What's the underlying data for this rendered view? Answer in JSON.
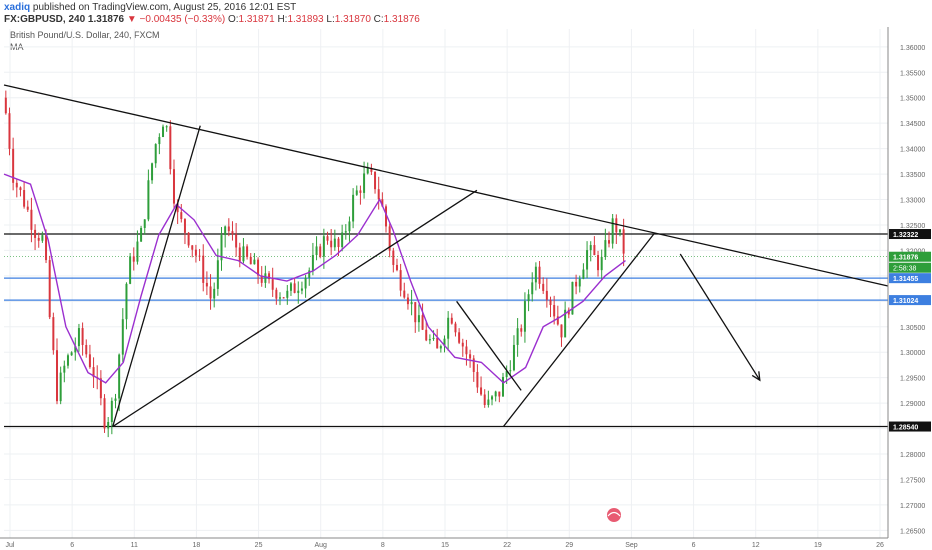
{
  "header": {
    "author": "xadiq",
    "published": "published on TradingView.com, August 25, 2016 12:01 EST",
    "symbol": "FX:GBPUSD, 240",
    "last": "1.31876",
    "change": "−0.00435 (−0.33%)",
    "o_label": "O:",
    "o": "1.31871",
    "h_label": "H:",
    "h": "1.31893",
    "l_label": "L:",
    "l": "1.31870",
    "c_label": "C:",
    "c": "1.31876"
  },
  "instrument": {
    "name": "British Pound/U.S. Dollar, 240, FXCM",
    "indicator": "MA"
  },
  "colors": {
    "up": "#2e9e3a",
    "down": "#d9363e",
    "ma": "#9b2fcf",
    "trendline": "#111111",
    "support_blue": "#3d7fe0",
    "grid": "#eef0f3"
  },
  "chart_data": {
    "type": "candlestick",
    "ylim": [
      1.2635,
      1.3635
    ],
    "yticks": [
      "1.36000",
      "1.35500",
      "1.35000",
      "1.34500",
      "1.34000",
      "1.33500",
      "1.33000",
      "1.32500",
      "1.32000",
      "1.31500",
      "1.31000",
      "1.30500",
      "1.30000",
      "1.29500",
      "1.29000",
      "1.28500",
      "1.28000",
      "1.27500",
      "1.27000",
      "1.26500"
    ],
    "xticks": [
      "Jul",
      "6",
      "11",
      "18",
      "25",
      "Aug",
      "8",
      "15",
      "22",
      "29",
      "Sep",
      "6",
      "12",
      "19",
      "26"
    ],
    "price_labels": [
      {
        "text": "1.32322",
        "value": 1.32322,
        "color": "#111111"
      },
      {
        "text": "1.31876",
        "value": 1.31876,
        "color": "#2e9e3a"
      },
      {
        "text": "1.31455",
        "value": 1.31455,
        "color": "#3d7fe0"
      },
      {
        "text": "1.31024",
        "value": 1.31024,
        "color": "#3d7fe0"
      },
      {
        "text": "1.28540",
        "value": 1.2854,
        "color": "#111111"
      }
    ],
    "countdown": "2:58:38",
    "horizontal_lines": [
      {
        "value": 1.32322,
        "color": "#111111"
      },
      {
        "value": 1.31455,
        "color": "#3d7fe0"
      },
      {
        "value": 1.31024,
        "color": "#3d7fe0"
      },
      {
        "value": 1.2854,
        "color": "#111111"
      }
    ],
    "price_path": [
      [
        0.0,
        1.35
      ],
      [
        0.011,
        1.334
      ],
      [
        0.022,
        1.33
      ],
      [
        0.035,
        1.324
      ],
      [
        0.045,
        1.322
      ],
      [
        0.052,
        1.306
      ],
      [
        0.06,
        1.292
      ],
      [
        0.07,
        1.298
      ],
      [
        0.085,
        1.303
      ],
      [
        0.1,
        1.297
      ],
      [
        0.115,
        1.286
      ],
      [
        0.125,
        1.291
      ],
      [
        0.14,
        1.316
      ],
      [
        0.155,
        1.323
      ],
      [
        0.17,
        1.34
      ],
      [
        0.182,
        1.347
      ],
      [
        0.195,
        1.327
      ],
      [
        0.208,
        1.323
      ],
      [
        0.22,
        1.318
      ],
      [
        0.235,
        1.31
      ],
      [
        0.25,
        1.325
      ],
      [
        0.265,
        1.32
      ],
      [
        0.285,
        1.316
      ],
      [
        0.3,
        1.313
      ],
      [
        0.32,
        1.311
      ],
      [
        0.345,
        1.316
      ],
      [
        0.365,
        1.323
      ],
      [
        0.38,
        1.32
      ],
      [
        0.395,
        1.33
      ],
      [
        0.41,
        1.335
      ],
      [
        0.42,
        1.333
      ],
      [
        0.43,
        1.327
      ],
      [
        0.44,
        1.317
      ],
      [
        0.455,
        1.312
      ],
      [
        0.47,
        1.305
      ],
      [
        0.49,
        1.3
      ],
      [
        0.505,
        1.308
      ],
      [
        0.52,
        1.301
      ],
      [
        0.53,
        1.297
      ],
      [
        0.545,
        1.289
      ],
      [
        0.56,
        1.292
      ],
      [
        0.572,
        1.298
      ],
      [
        0.585,
        1.305
      ],
      [
        0.6,
        1.317
      ],
      [
        0.615,
        1.312
      ],
      [
        0.63,
        1.304
      ],
      [
        0.645,
        1.313
      ],
      [
        0.66,
        1.32
      ],
      [
        0.675,
        1.317
      ],
      [
        0.69,
        1.326
      ],
      [
        0.703,
        1.319
      ]
    ],
    "ma_path": [
      [
        0.0,
        1.335
      ],
      [
        0.03,
        1.333
      ],
      [
        0.05,
        1.322
      ],
      [
        0.07,
        1.305
      ],
      [
        0.095,
        1.296
      ],
      [
        0.115,
        1.294
      ],
      [
        0.135,
        1.298
      ],
      [
        0.155,
        1.311
      ],
      [
        0.175,
        1.323
      ],
      [
        0.195,
        1.329
      ],
      [
        0.215,
        1.326
      ],
      [
        0.24,
        1.319
      ],
      [
        0.265,
        1.318
      ],
      [
        0.29,
        1.315
      ],
      [
        0.32,
        1.314
      ],
      [
        0.35,
        1.316
      ],
      [
        0.375,
        1.319
      ],
      [
        0.4,
        1.323
      ],
      [
        0.425,
        1.33
      ],
      [
        0.44,
        1.324
      ],
      [
        0.46,
        1.314
      ],
      [
        0.48,
        1.305
      ],
      [
        0.51,
        1.299
      ],
      [
        0.54,
        1.298
      ],
      [
        0.565,
        1.294
      ],
      [
        0.59,
        1.297
      ],
      [
        0.61,
        1.305
      ],
      [
        0.63,
        1.307
      ],
      [
        0.655,
        1.31
      ],
      [
        0.68,
        1.315
      ],
      [
        0.703,
        1.318
      ]
    ],
    "trendlines": [
      {
        "from": [
          0.0,
          1.3525
        ],
        "to": [
          1.0,
          1.313
        ]
      },
      {
        "from": [
          0.123,
          1.2854
        ],
        "to": [
          0.222,
          1.3445
        ]
      },
      {
        "from": [
          0.123,
          1.2854
        ],
        "to": [
          0.535,
          1.3318
        ]
      },
      {
        "from": [
          0.512,
          1.31
        ],
        "to": [
          0.585,
          1.2925
        ]
      },
      {
        "from": [
          0.565,
          1.2854
        ],
        "to": [
          0.735,
          1.3232
        ]
      }
    ],
    "arrow": {
      "from": [
        0.765,
        1.3193
      ],
      "to": [
        0.855,
        1.2945
      ]
    }
  }
}
